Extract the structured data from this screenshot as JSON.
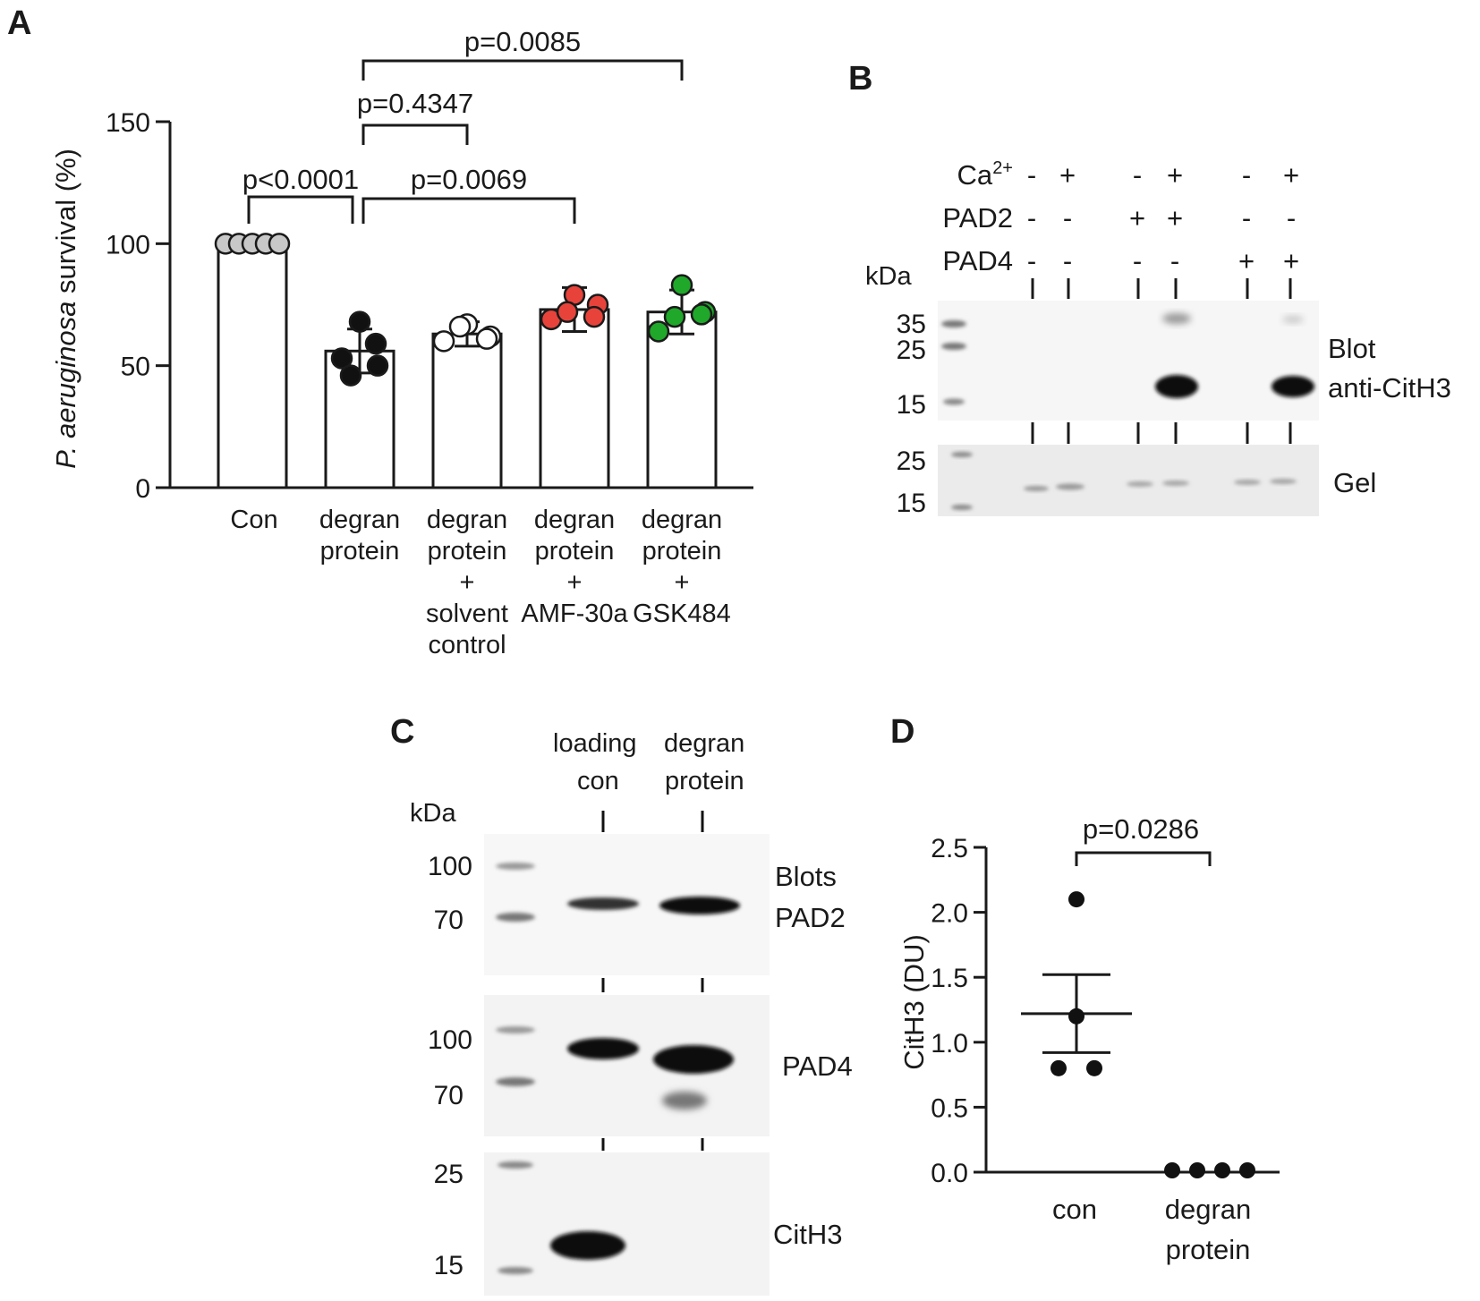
{
  "panels": {
    "A": "A",
    "B": "B",
    "C": "C",
    "D": "D"
  },
  "chart_data": [
    {
      "panel": "A",
      "type": "bar",
      "ylabel_italic": "P. aeruginosa",
      "ylabel_rest": " survival (%)",
      "ylim": [
        0,
        150
      ],
      "yticks": [
        0,
        50,
        100,
        150
      ],
      "categories": [
        [
          "Con"
        ],
        [
          "degran",
          "protein"
        ],
        [
          "degran",
          "protein",
          "+",
          "solvent",
          "control"
        ],
        [
          "degran",
          "protein",
          "+",
          "AMF-30a"
        ],
        [
          "degran",
          "protein",
          "+",
          "GSK484"
        ]
      ],
      "values": [
        100,
        56,
        63,
        73,
        72
      ],
      "errors": [
        0,
        9,
        5,
        9,
        9
      ],
      "point_colors": [
        "#c8c8c8",
        "#111111",
        "#ffffff",
        "#e8433b",
        "#1fa82a"
      ],
      "points": [
        [
          100,
          100,
          100,
          100,
          100
        ],
        [
          68,
          59,
          53,
          46,
          50
        ],
        [
          67,
          62,
          60,
          66,
          61
        ],
        [
          79,
          75,
          69,
          72,
          70
        ],
        [
          83,
          72,
          64,
          70,
          71
        ]
      ],
      "comparisons": [
        {
          "from": 0,
          "to": 1,
          "label": "p<0.0001"
        },
        {
          "from": 1,
          "to": 3,
          "label": "p=0.0069"
        },
        {
          "from": 1,
          "to": 2,
          "label": "p=0.4347"
        },
        {
          "from": 1,
          "to": 4,
          "label": "p=0.0085"
        }
      ]
    },
    {
      "panel": "D",
      "type": "scatter",
      "ylabel": "CitH3 (DU)",
      "ylim": [
        0,
        2.5
      ],
      "yticks": [
        "0.0",
        "0.5",
        "1.0",
        "1.5",
        "2.0",
        "2.5"
      ],
      "categories": [
        [
          "con"
        ],
        [
          "degran",
          "protein"
        ]
      ],
      "series": [
        {
          "values": [
            2.1,
            1.2,
            0.8,
            0.8
          ],
          "mean": 1.22,
          "sem": 0.3
        },
        {
          "values": [
            0.0,
            0.0,
            0.0,
            0.0
          ],
          "mean": 0.0,
          "sem": 0.0
        }
      ],
      "comparison": {
        "label": "p=0.0286"
      }
    }
  ],
  "blotB": {
    "rows": [
      {
        "label": "Ca",
        "sup": "2+",
        "signs": [
          "-",
          "+",
          "-",
          "+",
          "-",
          "+"
        ]
      },
      {
        "label": "PAD2",
        "sup": "",
        "signs": [
          "-",
          "-",
          "+",
          "+",
          "-",
          "-"
        ]
      },
      {
        "label": "PAD4",
        "sup": "",
        "signs": [
          "-",
          "-",
          "-",
          "-",
          "+",
          "+"
        ]
      }
    ],
    "kda": "kDa",
    "blot_markers": [
      "35",
      "25",
      "15"
    ],
    "gel_markers": [
      "25",
      "15"
    ],
    "blot_label": [
      "Blot",
      "anti-CitH3"
    ],
    "gel_label": "Gel"
  },
  "blotC": {
    "lanes": [
      [
        "loading",
        "con"
      ],
      [
        "degran",
        "protein"
      ]
    ],
    "kda": "kDa",
    "blot1": {
      "markers": [
        "100",
        "70"
      ],
      "label": [
        "Blots",
        "PAD2"
      ]
    },
    "blot2": {
      "markers": [
        "100",
        "70"
      ],
      "label": [
        "PAD4"
      ]
    },
    "blot3": {
      "markers": [
        "25",
        "15"
      ],
      "label": [
        "CitH3"
      ]
    }
  }
}
